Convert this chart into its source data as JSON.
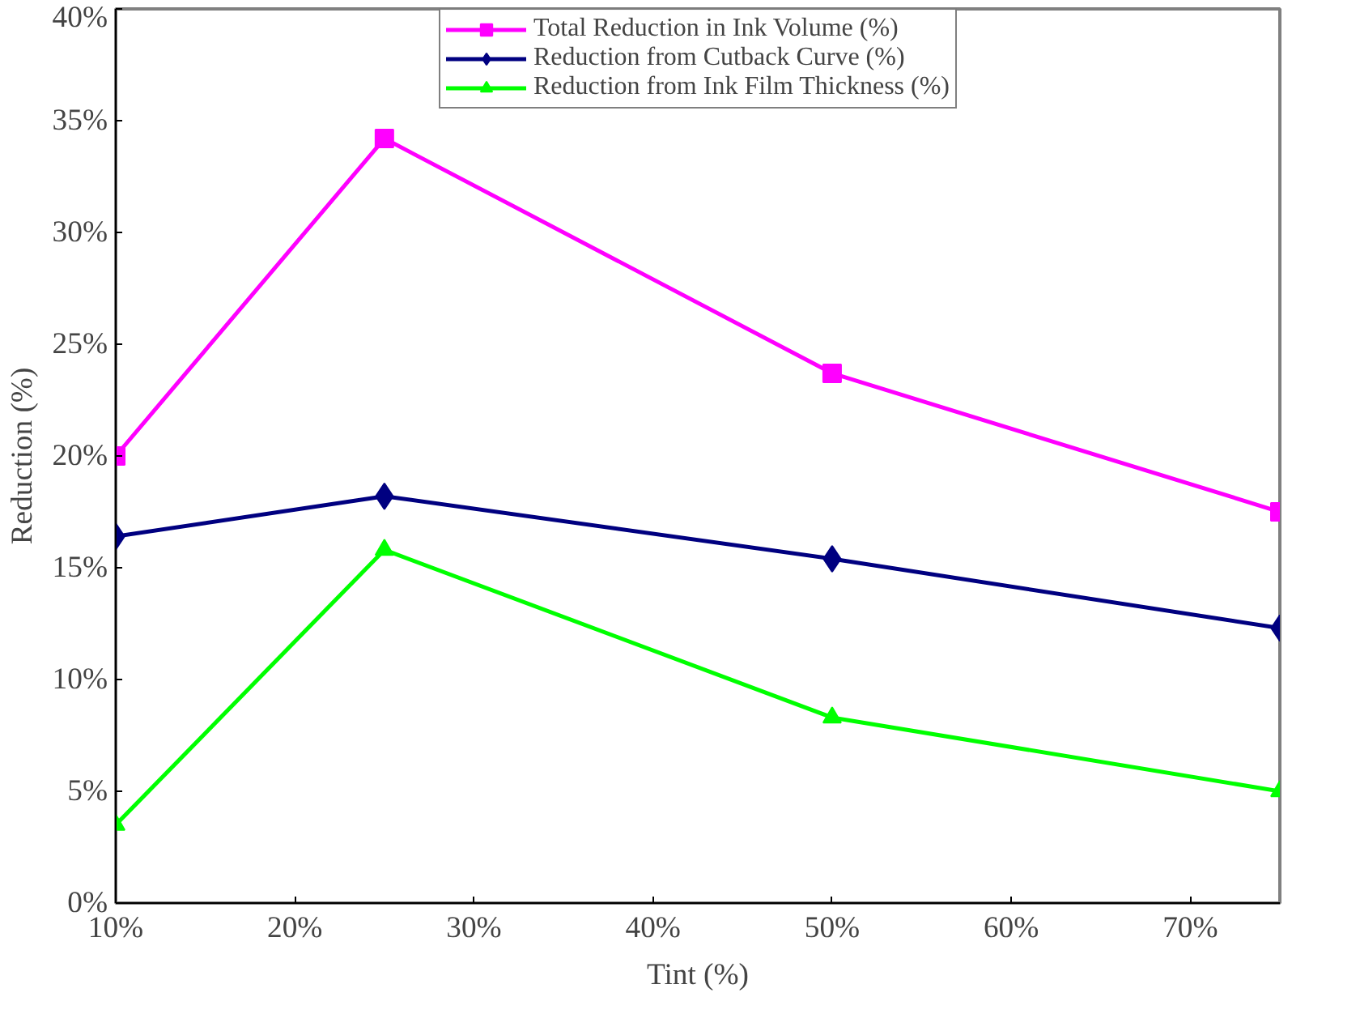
{
  "chart_data": {
    "type": "line",
    "xlabel": "Tint (%)",
    "ylabel": "Reduction (%)",
    "x": [
      10,
      25,
      50,
      75
    ],
    "series": [
      {
        "name": "Total Reduction in Ink Volume (%)",
        "color": "#ff00ff",
        "marker": "square",
        "values": [
          20.0,
          34.2,
          23.7,
          17.5
        ]
      },
      {
        "name": "Reduction from Cutback Curve (%)",
        "color": "#000080",
        "marker": "diamond",
        "values": [
          16.4,
          18.2,
          15.4,
          12.3
        ]
      },
      {
        "name": "Reduction from Ink Film Thickness (%)",
        "color": "#00ff00",
        "marker": "triangle",
        "values": [
          3.5,
          15.8,
          8.3,
          5.0
        ]
      }
    ],
    "xlim": [
      10,
      75
    ],
    "xticks": [
      {
        "value": 10,
        "label": "10%"
      },
      {
        "value": 20,
        "label": "20%"
      },
      {
        "value": 30,
        "label": "30%"
      },
      {
        "value": 40,
        "label": "40%"
      },
      {
        "value": 50,
        "label": "50%"
      },
      {
        "value": 60,
        "label": "60%"
      },
      {
        "value": 70,
        "label": "70%"
      }
    ],
    "ylim": [
      0,
      40
    ],
    "yticks": [
      {
        "value": 0,
        "label": "0%"
      },
      {
        "value": 5,
        "label": "5%"
      },
      {
        "value": 10,
        "label": "10%"
      },
      {
        "value": 15,
        "label": "15%"
      },
      {
        "value": 20,
        "label": "20%"
      },
      {
        "value": 25,
        "label": "25%"
      },
      {
        "value": 30,
        "label": "30%"
      },
      {
        "value": 35,
        "label": "35%"
      },
      {
        "value": 40,
        "label": "40%"
      }
    ],
    "grid": false,
    "legend": "top",
    "line_style": "solid"
  }
}
